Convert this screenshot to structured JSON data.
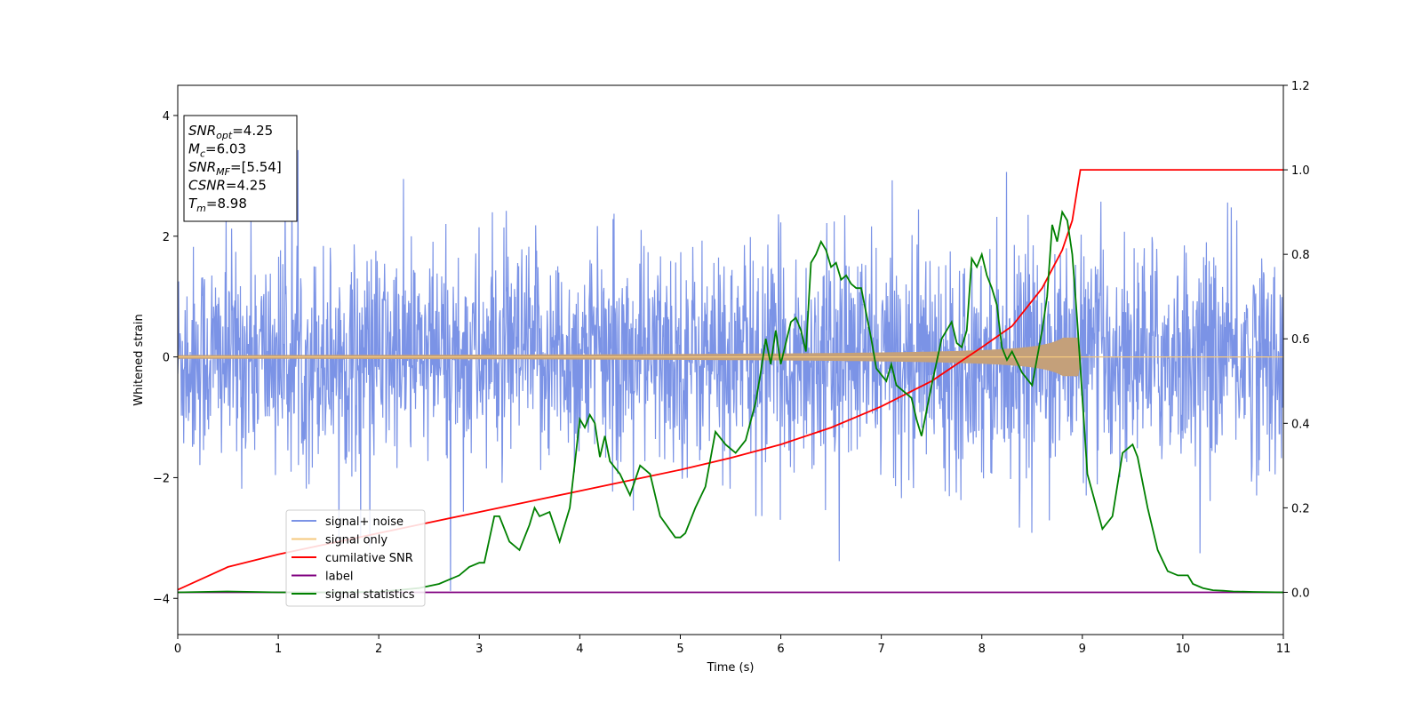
{
  "chart_data": {
    "type": "line",
    "xlabel": "Time (s)",
    "ylabel": "Whitened strain",
    "xlim": [
      0,
      11
    ],
    "ylim": [
      -4.6,
      4.5
    ],
    "y2lim": [
      -0.1,
      1.2
    ],
    "xticks": [
      "0",
      "1",
      "2",
      "3",
      "4",
      "5",
      "6",
      "7",
      "8",
      "9",
      "10",
      "11"
    ],
    "yticks": [
      "−4",
      "−2",
      "0",
      "2",
      "4"
    ],
    "y2ticks": [
      "0.0",
      "0.2",
      "0.4",
      "0.6",
      "0.8",
      "1.0",
      "1.2"
    ],
    "legend_position": "lower-left",
    "info_box": {
      "position": "top-left",
      "lines": [
        {
          "sym": "SNR",
          "sub": "opt",
          "val": "=4.25"
        },
        {
          "sym": "M",
          "sub": "c",
          "val": "=6.03"
        },
        {
          "sym": "SNR",
          "sub": "MF",
          "val": "=[5.54]"
        },
        {
          "sym": "CSNR",
          "sub": "",
          "val": "=4.25"
        },
        {
          "sym": "T",
          "sub": "m",
          "val": "=8.98"
        }
      ]
    },
    "series": [
      {
        "name": "signal+ noise",
        "color": "#7b93e6",
        "axis": "left",
        "description": "noisy whitened strain, approx amplitude ±2"
      },
      {
        "name": "signal only",
        "color": "#f5c97e",
        "axis": "left",
        "description": "chirp signal growing in amplitude until merger at 8.98 s"
      },
      {
        "name": "cumilative SNR",
        "color": "#ff0000",
        "axis": "right",
        "x": [
          0,
          0.5,
          1,
          1.5,
          2,
          2.5,
          3,
          3.5,
          4,
          4.5,
          5,
          5.5,
          6,
          6.5,
          7,
          7.5,
          8,
          8.3,
          8.6,
          8.8,
          8.9,
          8.98,
          9.5,
          10,
          11
        ],
        "y": [
          0.006,
          0.06,
          0.09,
          0.115,
          0.14,
          0.165,
          0.19,
          0.215,
          0.24,
          0.265,
          0.29,
          0.318,
          0.35,
          0.39,
          0.44,
          0.5,
          0.58,
          0.63,
          0.72,
          0.81,
          0.88,
          1.0,
          1.0,
          1.0,
          1.0
        ]
      },
      {
        "name": "label",
        "color": "#800080",
        "axis": "right",
        "x": [
          0,
          11
        ],
        "y": [
          0.0,
          0.0
        ]
      },
      {
        "name": "signal statistics",
        "color": "#008000",
        "axis": "right",
        "x": [
          0,
          0.5,
          1,
          1.5,
          2,
          2.4,
          2.6,
          2.7,
          2.8,
          2.9,
          3.0,
          3.05,
          3.15,
          3.2,
          3.3,
          3.4,
          3.5,
          3.55,
          3.6,
          3.7,
          3.8,
          3.9,
          4.0,
          4.05,
          4.1,
          4.15,
          4.2,
          4.25,
          4.3,
          4.4,
          4.5,
          4.6,
          4.65,
          4.7,
          4.8,
          4.95,
          5.0,
          5.05,
          5.15,
          5.25,
          5.35,
          5.45,
          5.55,
          5.65,
          5.75,
          5.8,
          5.85,
          5.9,
          5.95,
          6.0,
          6.05,
          6.1,
          6.15,
          6.2,
          6.25,
          6.3,
          6.35,
          6.4,
          6.45,
          6.5,
          6.55,
          6.6,
          6.65,
          6.7,
          6.75,
          6.8,
          6.9,
          6.95,
          7.05,
          7.1,
          7.15,
          7.3,
          7.35,
          7.4,
          7.5,
          7.6,
          7.7,
          7.75,
          7.8,
          7.85,
          7.9,
          7.95,
          8.0,
          8.05,
          8.1,
          8.15,
          8.2,
          8.25,
          8.3,
          8.4,
          8.5,
          8.6,
          8.65,
          8.7,
          8.75,
          8.8,
          8.85,
          8.9,
          8.95,
          9.05,
          9.2,
          9.3,
          9.4,
          9.5,
          9.55,
          9.65,
          9.75,
          9.85,
          9.95,
          10.05,
          10.1,
          10.2,
          10.3,
          10.4,
          10.5,
          10.7,
          11
        ],
        "y": [
          0.0,
          0.002,
          0.0,
          0.0,
          0.001,
          0.01,
          0.02,
          0.03,
          0.04,
          0.06,
          0.07,
          0.07,
          0.18,
          0.18,
          0.12,
          0.1,
          0.16,
          0.2,
          0.18,
          0.19,
          0.12,
          0.2,
          0.41,
          0.39,
          0.42,
          0.4,
          0.32,
          0.37,
          0.31,
          0.28,
          0.23,
          0.3,
          0.29,
          0.28,
          0.18,
          0.13,
          0.13,
          0.14,
          0.2,
          0.25,
          0.38,
          0.35,
          0.33,
          0.36,
          0.45,
          0.52,
          0.6,
          0.54,
          0.62,
          0.54,
          0.59,
          0.64,
          0.65,
          0.62,
          0.57,
          0.78,
          0.8,
          0.83,
          0.81,
          0.77,
          0.78,
          0.74,
          0.75,
          0.73,
          0.72,
          0.72,
          0.6,
          0.53,
          0.5,
          0.54,
          0.49,
          0.46,
          0.41,
          0.37,
          0.49,
          0.6,
          0.64,
          0.59,
          0.58,
          0.62,
          0.79,
          0.77,
          0.8,
          0.75,
          0.72,
          0.68,
          0.58,
          0.55,
          0.57,
          0.52,
          0.49,
          0.62,
          0.7,
          0.87,
          0.83,
          0.9,
          0.88,
          0.8,
          0.64,
          0.28,
          0.15,
          0.18,
          0.33,
          0.35,
          0.32,
          0.2,
          0.1,
          0.05,
          0.04,
          0.04,
          0.02,
          0.01,
          0.005,
          0.004,
          0.002,
          0.001,
          0.0
        ]
      }
    ]
  }
}
